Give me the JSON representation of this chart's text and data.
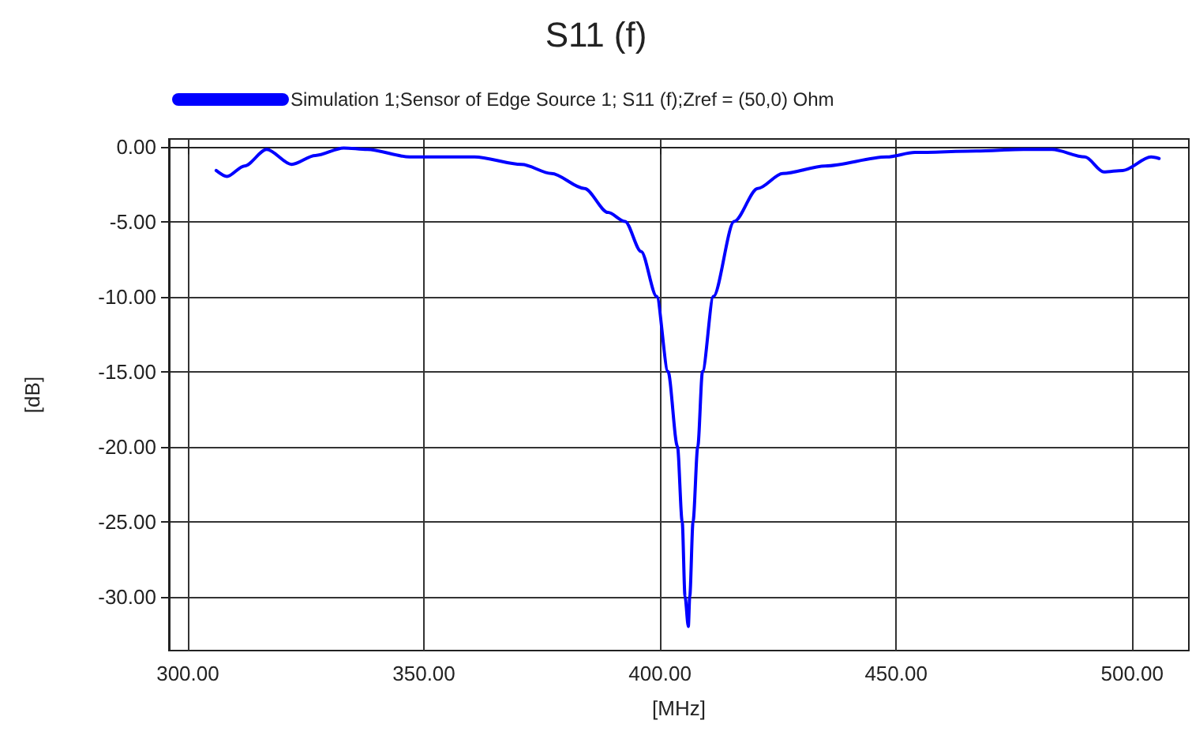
{
  "chart_data": {
    "type": "line",
    "title": "S11 (f)",
    "xlabel": "[MHz]",
    "ylabel": "[dB]",
    "xlim": [
      296,
      512
    ],
    "ylim": [
      -33.6,
      0.5
    ],
    "xticks": [
      {
        "value": 300,
        "label": "300.00"
      },
      {
        "value": 350,
        "label": "350.00"
      },
      {
        "value": 400,
        "label": "400.00"
      },
      {
        "value": 450,
        "label": "450.00"
      },
      {
        "value": 500,
        "label": "500.00"
      }
    ],
    "yticks": [
      {
        "value": 0,
        "label": "0.00"
      },
      {
        "value": -5,
        "label": "-5.00"
      },
      {
        "value": -10,
        "label": "-10.00"
      },
      {
        "value": -15,
        "label": "-15.00"
      },
      {
        "value": -20,
        "label": "-20.00"
      },
      {
        "value": -25,
        "label": "-25.00"
      },
      {
        "value": -30,
        "label": "-30.00"
      }
    ],
    "grid": true,
    "legend": "top left",
    "marker": "none",
    "line_style": "solid",
    "series": [
      {
        "name": "Simulation 1;Sensor of Edge Source 1; S11 (f);Zref = (50,0) Ohm",
        "color": "#0000ff",
        "x": [
          306,
          308.3,
          312,
          316.7,
          322,
          327,
          333,
          338,
          347,
          360.7,
          370.7,
          377,
          384,
          389,
          392.6,
          396,
          399.3,
          401.7,
          403.7,
          404.7,
          405.3,
          406,
          406.3,
          407,
          408,
          409,
          411.3,
          415.7,
          420.7,
          426,
          435,
          448,
          454,
          467,
          477,
          483,
          490,
          494,
          498,
          504,
          505.7
        ],
        "values": [
          -1.6,
          -2.0,
          -1.3,
          -0.2,
          -1.2,
          -0.6,
          -0.1,
          -0.2,
          -0.7,
          -0.7,
          -1.2,
          -1.8,
          -2.8,
          -4.4,
          -5.0,
          -7.0,
          -10.0,
          -15.0,
          -20.0,
          -25.0,
          -30.0,
          -32.0,
          -30.0,
          -25.0,
          -20.0,
          -15.0,
          -10.0,
          -5.0,
          -2.8,
          -1.8,
          -1.3,
          -0.7,
          -0.4,
          -0.3,
          -0.2,
          -0.2,
          -0.7,
          -1.7,
          -1.6,
          -0.7,
          -0.8
        ]
      }
    ]
  }
}
